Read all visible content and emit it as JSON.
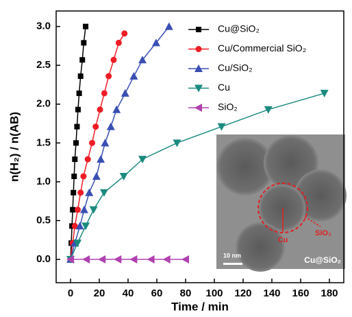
{
  "chart_data": {
    "type": "line",
    "x_label": "Time / min",
    "y_label": "n(H₂) / n(AB)",
    "xlim": [
      -10,
      190
    ],
    "xticks": [
      0,
      20,
      40,
      60,
      80,
      100,
      120,
      140,
      160,
      180
    ],
    "ylim": [
      -0.3,
      3.2
    ],
    "yticks": [
      {
        "value": 0,
        "label": "0.0"
      },
      0.5,
      {
        "value": 1,
        "label": "1.0"
      },
      1.5,
      {
        "value": 2,
        "label": "2.0"
      },
      2.5,
      {
        "value": 3,
        "label": "3.0"
      }
    ],
    "legend": "upper-right",
    "series": [
      {
        "name": "Cu@SiO₂",
        "color": "#000000",
        "marker": "square",
        "x": [
          0,
          0.5,
          1,
          1.5,
          2,
          2.5,
          3,
          3.8,
          4.5,
          5.2,
          6,
          7,
          8.2,
          9.2,
          10.5
        ],
        "values": [
          0,
          0.21,
          0.43,
          0.64,
          0.86,
          1.07,
          1.29,
          1.5,
          1.71,
          1.93,
          2.14,
          2.36,
          2.57,
          2.79,
          3.0
        ]
      },
      {
        "name": "Cu/Commercial SiO₂",
        "color": "#ee1c24",
        "marker": "circle",
        "x": [
          0,
          1.5,
          3,
          5,
          7,
          9,
          12,
          15,
          17.5,
          20.5,
          23.5,
          26.5,
          30,
          33.5,
          37.5
        ],
        "values": [
          0,
          0.21,
          0.43,
          0.64,
          0.86,
          1.07,
          1.29,
          1.5,
          1.71,
          1.93,
          2.14,
          2.36,
          2.57,
          2.79,
          2.91
        ]
      },
      {
        "name": "Cu/SiO₂",
        "color": "#3a4fb4",
        "marker": "triangle",
        "x": [
          0,
          3,
          6.5,
          9.5,
          13,
          18,
          21,
          24,
          28,
          32,
          38,
          44,
          50,
          59.5,
          68.5
        ],
        "values": [
          0,
          0.21,
          0.43,
          0.64,
          0.86,
          1.07,
          1.29,
          1.5,
          1.71,
          1.93,
          2.14,
          2.36,
          2.57,
          2.79,
          3.0
        ]
      },
      {
        "name": "Cu",
        "color": "#1b8a7f",
        "marker": "down-triangle",
        "x": [
          0,
          4.8,
          10.5,
          16,
          23.3,
          37,
          50,
          74,
          105,
          137.5,
          176.5
        ],
        "values": [
          0,
          0.21,
          0.43,
          0.64,
          0.86,
          1.07,
          1.29,
          1.5,
          1.71,
          1.93,
          2.14
        ]
      },
      {
        "name": "SiO₂",
        "color": "#b040b0",
        "marker": "left-triangle",
        "x": [
          0,
          11,
          22,
          33,
          44,
          56,
          67,
          80
        ],
        "values": [
          0,
          0,
          0,
          0,
          0,
          0,
          0,
          0
        ]
      }
    ],
    "annotations": [
      "10 nm",
      "Cu",
      "SiO₂",
      "Cu@SiO₂"
    ]
  }
}
